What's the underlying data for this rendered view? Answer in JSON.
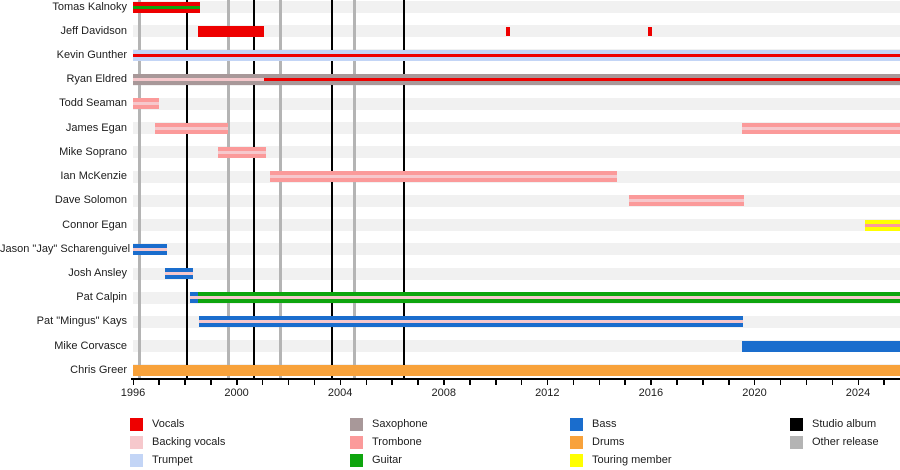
{
  "chart_data": {
    "type": "timeline",
    "description": "Band members timeline gantt chart",
    "axis": {
      "unit": "year",
      "start": 1996,
      "end": 2025.62,
      "tick_years": [
        1996,
        2000,
        2004,
        2008,
        2012,
        2016,
        2020,
        2024
      ],
      "minor_tick_step": 1
    },
    "grid": "alternating-row-stripes",
    "legend_position": "bottom",
    "role_colors": {
      "vocals": "#ee0000",
      "backing_vocals": "#f6c8cc",
      "trumpet": "#c3d5f6",
      "saxophone": "#a89899",
      "trombone": "#fb9a9a",
      "guitar": "#0ea50e",
      "bass": "#1a6dcd",
      "drums": "#f8a23b",
      "touring_member": "#ffff00",
      "studio_album": "#000000",
      "other_release": "#b4b4b4"
    },
    "members": [
      {
        "name": "Tomas Kalnoky",
        "bars": [
          {
            "start": 1996.0,
            "end": 1998.6,
            "outer": "vocals",
            "center": "guitar"
          }
        ]
      },
      {
        "name": "Jeff Davidson",
        "bars": [
          {
            "start": 1998.5,
            "end": 2001.05,
            "outer": "vocals"
          },
          {
            "start": 2010.4,
            "end": 2010.55,
            "outer": "vocals",
            "small": true
          },
          {
            "start": 2015.9,
            "end": 2016.05,
            "outer": "vocals",
            "small": true
          }
        ]
      },
      {
        "name": "Kevin Gunther",
        "bars": [
          {
            "start": 1996.0,
            "end": 2025.62,
            "outer": "trumpet",
            "center": "vocals"
          }
        ]
      },
      {
        "name": "Ryan Eldred",
        "bars": [
          {
            "start": 1996.0,
            "end": 2001.05,
            "outer": "saxophone",
            "center": "backing_vocals"
          },
          {
            "start": 2001.05,
            "end": 2025.62,
            "outer": "saxophone",
            "center": "vocals"
          }
        ]
      },
      {
        "name": "Todd Seaman",
        "bars": [
          {
            "start": 1996.0,
            "end": 1997.0,
            "outer": "trombone",
            "center": "backing_vocals"
          }
        ]
      },
      {
        "name": "James Egan",
        "bars": [
          {
            "start": 1996.85,
            "end": 1999.65,
            "outer": "trombone",
            "center": "backing_vocals"
          },
          {
            "start": 2019.5,
            "end": 2025.62,
            "outer": "trombone",
            "center": "backing_vocals"
          }
        ]
      },
      {
        "name": "Mike Soprano",
        "bars": [
          {
            "start": 1999.3,
            "end": 2001.15,
            "outer": "trombone",
            "center": "backing_vocals"
          }
        ]
      },
      {
        "name": "Ian McKenzie",
        "bars": [
          {
            "start": 2001.3,
            "end": 2014.7,
            "outer": "trombone",
            "center": "backing_vocals"
          }
        ]
      },
      {
        "name": "Dave Solomon",
        "bars": [
          {
            "start": 2015.15,
            "end": 2019.6,
            "outer": "trombone",
            "center": "backing_vocals"
          }
        ]
      },
      {
        "name": "Connor Egan",
        "bars": [
          {
            "start": 2024.25,
            "end": 2025.62,
            "outer": "touring_member",
            "center": "trombone"
          }
        ]
      },
      {
        "name": "Jason \"Jay\" Scharenguivel",
        "bars": [
          {
            "start": 1996.0,
            "end": 1997.3,
            "outer": "bass",
            "center": "backing_vocals"
          }
        ]
      },
      {
        "name": "Josh Ansley",
        "bars": [
          {
            "start": 1997.25,
            "end": 1998.3,
            "outer": "bass",
            "center": "backing_vocals"
          }
        ]
      },
      {
        "name": "Pat Calpin",
        "bars": [
          {
            "start": 1998.2,
            "end": 1998.5,
            "outer": "bass",
            "center": "backing_vocals"
          },
          {
            "start": 1998.5,
            "end": 2025.62,
            "outer": "guitar",
            "center": "backing_vocals"
          }
        ]
      },
      {
        "name": "Pat \"Mingus\" Kays",
        "bars": [
          {
            "start": 1998.55,
            "end": 2019.55,
            "outer": "bass",
            "center": "backing_vocals"
          }
        ]
      },
      {
        "name": "Mike Corvasce",
        "bars": [
          {
            "start": 2019.5,
            "end": 2025.62,
            "outer": "bass"
          }
        ]
      },
      {
        "name": "Chris Greer",
        "bars": [
          {
            "start": 1996.0,
            "end": 2025.62,
            "outer": "drums"
          }
        ]
      }
    ],
    "releases": [
      {
        "year": 1996.27,
        "type": "other_release"
      },
      {
        "year": 1998.1,
        "type": "studio_album"
      },
      {
        "year": 1999.67,
        "type": "other_release"
      },
      {
        "year": 2000.67,
        "type": "studio_album"
      },
      {
        "year": 2001.7,
        "type": "other_release"
      },
      {
        "year": 2003.7,
        "type": "studio_album"
      },
      {
        "year": 2004.57,
        "type": "other_release"
      },
      {
        "year": 2006.45,
        "type": "studio_album"
      }
    ],
    "legend": {
      "columns": [
        [
          {
            "label": "Vocals",
            "color_key": "vocals"
          },
          {
            "label": "Backing vocals",
            "color_key": "backing_vocals"
          },
          {
            "label": "Trumpet",
            "color_key": "trumpet"
          }
        ],
        [
          {
            "label": "Saxophone",
            "color_key": "saxophone"
          },
          {
            "label": "Trombone",
            "color_key": "trombone"
          },
          {
            "label": "Guitar",
            "color_key": "guitar"
          }
        ],
        [
          {
            "label": "Bass",
            "color_key": "bass"
          },
          {
            "label": "Drums",
            "color_key": "drums"
          },
          {
            "label": "Touring member",
            "color_key": "touring_member"
          }
        ],
        [
          {
            "label": "Studio album",
            "color_key": "studio_album"
          },
          {
            "label": "Other release",
            "color_key": "other_release"
          }
        ]
      ]
    }
  }
}
